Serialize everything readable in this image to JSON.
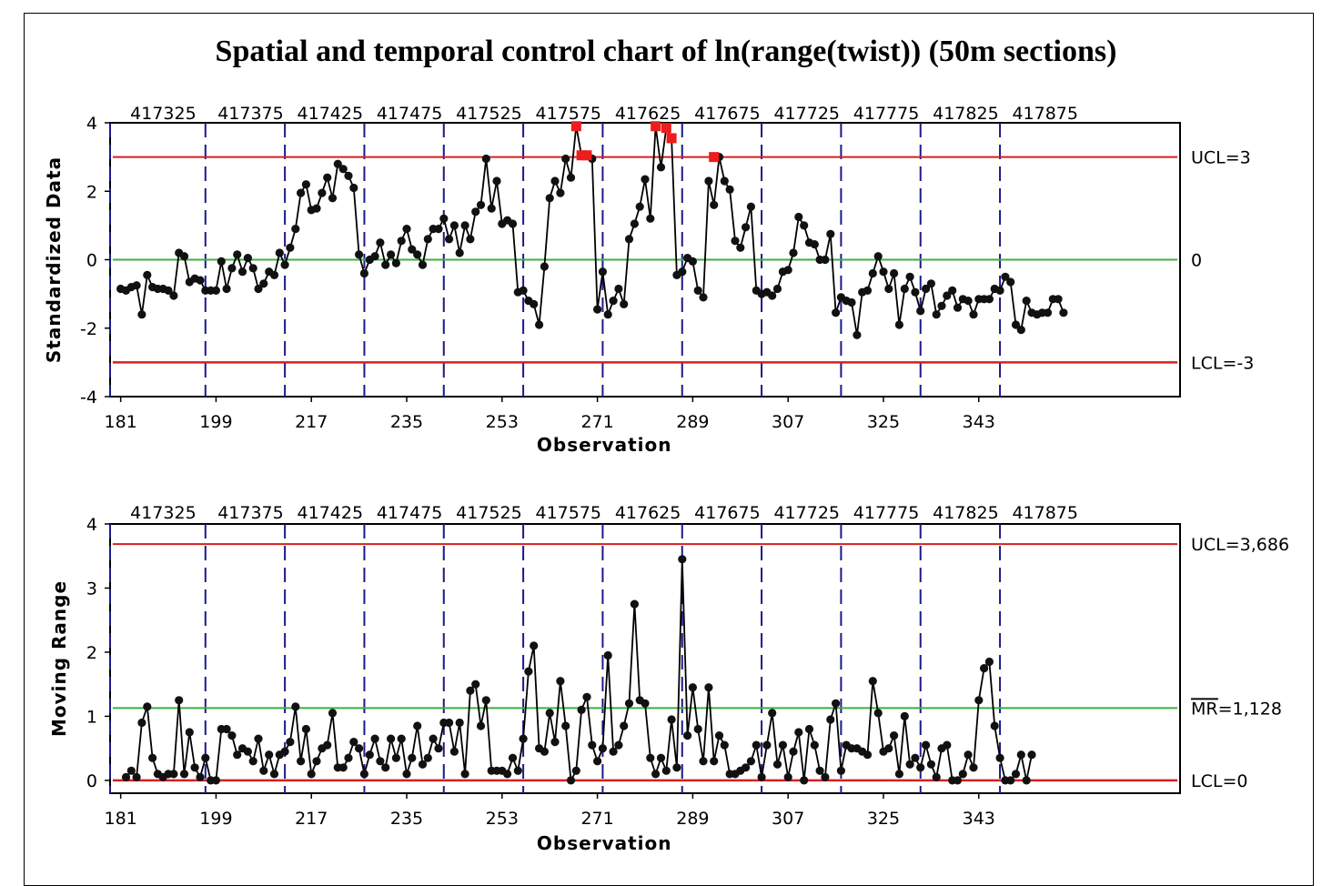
{
  "title": "Spatial and temporal control chart of ln(range(twist)) (50m sections)",
  "colors": {
    "center_line": "#3cb043",
    "control_limit": "#d42020",
    "out_of_control": "#ee1c1c",
    "points": "#111111",
    "section_divider": "#1a1a8c"
  },
  "chart_data": [
    {
      "type": "line",
      "name": "individuals",
      "xlabel": "Observation",
      "ylabel": "Standardized Data",
      "ylim": [
        -4,
        4
      ],
      "yticks": [
        -4,
        -2,
        0,
        2,
        4
      ],
      "xlim": [
        179,
        381
      ],
      "xticks": [
        181,
        199,
        217,
        235,
        253,
        271,
        289,
        307,
        325,
        343
      ],
      "section_labels": [
        "417325",
        "417375",
        "417425",
        "417475",
        "417525",
        "417575",
        "417625",
        "417675",
        "417725",
        "417775",
        "417825",
        "417875"
      ],
      "section_boundaries": [
        179,
        197,
        212,
        227,
        242,
        257,
        272,
        287,
        302,
        317,
        332,
        347
      ],
      "x_start": 181,
      "values": [
        -0.85,
        -0.9,
        -0.8,
        -0.75,
        -1.6,
        -0.45,
        -0.8,
        -0.85,
        -0.85,
        -0.9,
        -1.05,
        0.2,
        0.1,
        -0.65,
        -0.55,
        -0.6,
        -0.9,
        -0.9,
        -0.9,
        -0.05,
        -0.85,
        -0.25,
        0.15,
        -0.35,
        0.05,
        -0.25,
        -0.85,
        -0.7,
        -0.35,
        -0.45,
        0.2,
        -0.15,
        0.35,
        0.9,
        1.95,
        2.2,
        1.45,
        1.5,
        1.95,
        2.4,
        1.8,
        2.8,
        2.65,
        2.45,
        2.1,
        0.15,
        -0.4,
        0.0,
        0.1,
        0.5,
        -0.15,
        0.15,
        -0.1,
        0.55,
        0.9,
        0.3,
        0.15,
        -0.15,
        0.6,
        0.9,
        0.9,
        1.2,
        0.6,
        1.0,
        0.2,
        1.0,
        0.6,
        1.4,
        1.6,
        2.95,
        1.5,
        2.3,
        1.05,
        1.15,
        1.05,
        -0.95,
        -0.9,
        -1.2,
        -1.3,
        -1.9,
        -0.2,
        1.8,
        2.3,
        1.95,
        2.95,
        2.4,
        3.9,
        3.05,
        3.05,
        2.95,
        -1.45,
        -0.35,
        -1.6,
        -1.2,
        -0.85,
        -1.3,
        0.6,
        1.05,
        1.55,
        2.35,
        1.2,
        3.9,
        2.7,
        3.85,
        3.55,
        -0.45,
        -0.35,
        0.05,
        -0.05,
        -0.9,
        -1.1,
        2.3,
        1.6,
        3.0,
        2.3,
        2.05,
        0.55,
        0.35,
        0.95,
        1.55,
        -0.9,
        -1.0,
        -0.95,
        -1.05,
        -0.85,
        -0.35,
        -0.3,
        0.2,
        1.25,
        1.0,
        0.5,
        0.45,
        0.0,
        0.0,
        0.75,
        -1.55,
        -1.1,
        -1.2,
        -1.25,
        -2.2,
        -0.95,
        -0.9,
        -0.4,
        0.1,
        -0.35,
        -0.85,
        -0.4,
        -1.9,
        -0.85,
        -0.5,
        -0.95,
        -1.5,
        -0.85,
        -0.7,
        -1.6,
        -1.35,
        -1.05,
        -0.9,
        -1.4,
        -1.15,
        -1.2,
        -1.6,
        -1.15,
        -1.15,
        -1.15,
        -0.85,
        -0.9,
        -0.5,
        -0.65,
        -1.9,
        -2.05,
        -1.2,
        -1.55,
        -1.6,
        -1.55,
        -1.55,
        -1.15,
        -1.15,
        -1.55
      ],
      "out_of_control_points": [
        [
          267,
          3.9
        ],
        [
          268,
          3.05
        ],
        [
          269,
          3.05
        ],
        [
          282,
          3.9
        ],
        [
          284,
          3.85
        ],
        [
          285,
          3.55
        ],
        [
          293,
          3.0
        ]
      ],
      "limits": {
        "ucl": 3,
        "center": 0,
        "lcl": -3,
        "ucl_label": "UCL=3",
        "center_label": "0",
        "lcl_label": "LCL=-3"
      }
    },
    {
      "type": "line",
      "name": "moving_range",
      "xlabel": "Observation",
      "ylabel": "Moving Range",
      "ylim": [
        -0.2,
        4.0
      ],
      "yticks": [
        0,
        1,
        2,
        3,
        4
      ],
      "xlim": [
        179,
        381
      ],
      "xticks": [
        181,
        199,
        217,
        235,
        253,
        271,
        289,
        307,
        325,
        343
      ],
      "section_labels": [
        "417325",
        "417375",
        "417425",
        "417475",
        "417525",
        "417575",
        "417625",
        "417675",
        "417725",
        "417775",
        "417825",
        "417875"
      ],
      "section_boundaries": [
        179,
        197,
        212,
        227,
        242,
        257,
        272,
        287,
        302,
        317,
        332,
        347
      ],
      "x_start": 182,
      "values": [
        0.05,
        0.15,
        0.05,
        0.9,
        1.15,
        0.35,
        0.1,
        0.05,
        0.1,
        0.1,
        1.25,
        0.1,
        0.75,
        0.2,
        0.05,
        0.35,
        0.0,
        0.0,
        0.8,
        0.8,
        0.7,
        0.4,
        0.5,
        0.45,
        0.3,
        0.65,
        0.15,
        0.4,
        0.1,
        0.4,
        0.45,
        0.6,
        1.15,
        0.3,
        0.8,
        0.1,
        0.3,
        0.5,
        0.55,
        1.05,
        0.2,
        0.2,
        0.35,
        0.6,
        0.5,
        0.1,
        0.4,
        0.65,
        0.3,
        0.2,
        0.65,
        0.35,
        0.65,
        0.1,
        0.35,
        0.85,
        0.25,
        0.35,
        0.65,
        0.5,
        0.9,
        0.9,
        0.45,
        0.9,
        0.1,
        1.4,
        1.5,
        0.85,
        1.25,
        0.15,
        0.15,
        0.15,
        0.1,
        0.35,
        0.15,
        0.65,
        1.7,
        2.1,
        0.5,
        0.45,
        1.05,
        0.6,
        1.55,
        0.85,
        0.0,
        0.15,
        1.1,
        1.3,
        0.55,
        0.3,
        0.5,
        1.95,
        0.45,
        0.55,
        0.85,
        1.2,
        2.75,
        1.25,
        1.2,
        0.35,
        0.1,
        0.35,
        0.15,
        0.95,
        0.2,
        3.45,
        0.7,
        1.45,
        0.8,
        0.3,
        1.45,
        0.3,
        0.7,
        0.55,
        0.1,
        0.1,
        0.15,
        0.2,
        0.3,
        0.55,
        0.05,
        0.55,
        1.05,
        0.25,
        0.55,
        0.05,
        0.45,
        0.75,
        0.0,
        0.8,
        0.55,
        0.15,
        0.05,
        0.95,
        1.2,
        0.15,
        0.55,
        0.5,
        0.5,
        0.45,
        0.4,
        1.55,
        1.05,
        0.45,
        0.5,
        0.7,
        0.1,
        1.0,
        0.25,
        0.35,
        0.2,
        0.55,
        0.25,
        0.05,
        0.5,
        0.55,
        0.0,
        0.0,
        0.1,
        0.4,
        0.2,
        1.25,
        1.75,
        1.85,
        0.85,
        0.35,
        0.0,
        0.0,
        0.1,
        0.4,
        0.0,
        0.4
      ],
      "limits": {
        "ucl": 3.686,
        "center": 1.128,
        "lcl": 0,
        "ucl_label": "UCL=3,686",
        "center_label_bar": "MR",
        "center_label_rest": "=1,128",
        "lcl_label": "LCL=0"
      }
    }
  ]
}
